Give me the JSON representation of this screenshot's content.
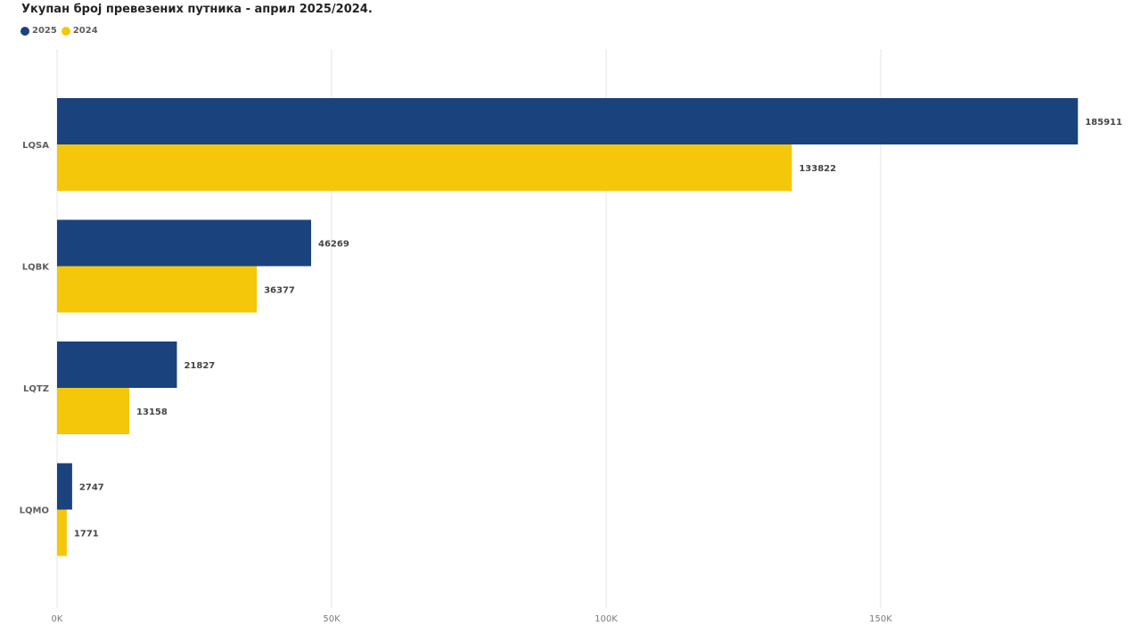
{
  "chart_data": {
    "type": "bar",
    "orientation": "horizontal",
    "title": "Укупан број превезених путника - април 2025/2024.",
    "categories": [
      "LQSA",
      "LQBK",
      "LQTZ",
      "LQMO"
    ],
    "series": [
      {
        "name": "2025",
        "color": "#1a437e",
        "values": [
          185911,
          46269,
          21827,
          2747
        ]
      },
      {
        "name": "2024",
        "color": "#f5c70a",
        "values": [
          133822,
          36377,
          13158,
          1771
        ]
      }
    ],
    "x_ticks": [
      {
        "value": 0,
        "label": "0K"
      },
      {
        "value": 50000,
        "label": "50K"
      },
      {
        "value": 100000,
        "label": "100K"
      },
      {
        "value": 150000,
        "label": "150K"
      }
    ],
    "xlim": [
      0,
      185911
    ],
    "xlabel": "",
    "ylabel": "",
    "grid": true,
    "legend_position": "top-left"
  }
}
